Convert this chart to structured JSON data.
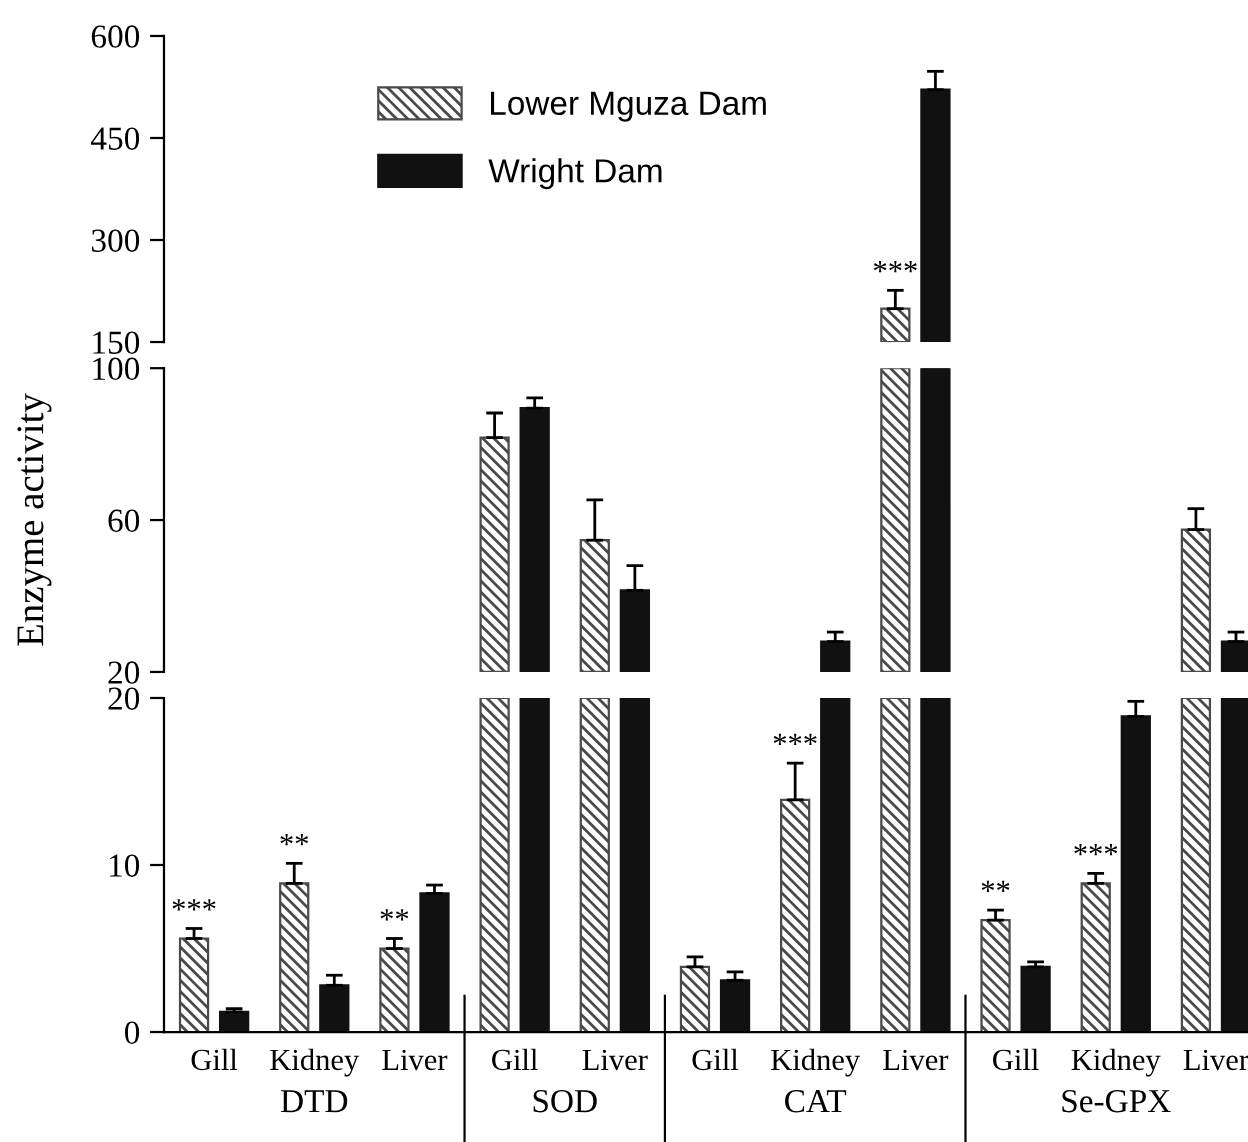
{
  "chart_data": [
    {
      "type": "bar",
      "categories": [
        null,
        null,
        null,
        null,
        null,
        null,
        null,
        null,
        null,
        null,
        null
      ],
      "series": [
        {
          "name": "Lower Mguza Dam",
          "color": "#4a4a4a",
          "base": [
            null,
            null,
            null,
            null,
            null,
            null,
            null,
            150,
            null,
            null,
            null
          ],
          "values": [
            null,
            null,
            null,
            null,
            null,
            null,
            null,
            49,
            null,
            null,
            null
          ],
          "errors": [
            null,
            null,
            null,
            null,
            null,
            null,
            null,
            [
              199,
              226
            ],
            null,
            null,
            null
          ],
          "value_labels": [
            null,
            null,
            null,
            null,
            null,
            null,
            null,
            "***",
            null,
            null,
            null
          ]
        },
        {
          "name": "Wright Dam",
          "color": "#111111",
          "base": [
            null,
            null,
            null,
            null,
            null,
            null,
            null,
            150,
            null,
            null,
            null
          ],
          "values": [
            null,
            null,
            null,
            null,
            null,
            null,
            null,
            371,
            null,
            null,
            null
          ],
          "errors": [
            null,
            null,
            null,
            null,
            null,
            null,
            null,
            [
              521,
              548
            ],
            null,
            null,
            null
          ]
        }
      ],
      "ylim": [
        150,
        600
      ],
      "yticks": [
        150,
        300,
        450,
        600
      ],
      "tick_labels": "y",
      "legend": "top left"
    },
    {
      "type": "bar",
      "categories": [
        null,
        null,
        null,
        null,
        null,
        null,
        null,
        null,
        null,
        null,
        null
      ],
      "ylabel": "Enzyme activity",
      "series": [
        {
          "color": "#4a4a4a",
          "base": [
            null,
            null,
            null,
            20,
            20,
            null,
            null,
            20,
            null,
            null,
            20
          ],
          "values": [
            null,
            null,
            null,
            61.7,
            34.7,
            null,
            null,
            80,
            null,
            null,
            37.5
          ],
          "errors": [
            null,
            null,
            null,
            [
              81.7,
              88.2
            ],
            [
              54.7,
              65.3
            ],
            null,
            null,
            null,
            null,
            null,
            [
              57.5,
              63
            ]
          ]
        },
        {
          "color": "#111111",
          "base": [
            null,
            null,
            null,
            20,
            20,
            null,
            20,
            20,
            null,
            null,
            20
          ],
          "values": [
            null,
            null,
            null,
            69.5,
            21.5,
            null,
            8.0,
            80,
            null,
            null,
            8.0
          ],
          "errors": [
            null,
            null,
            null,
            [
              89.5,
              92.2
            ],
            [
              41.5,
              48
            ],
            null,
            [
              28,
              30.5
            ],
            null,
            null,
            null,
            [
              28,
              30.5
            ]
          ]
        }
      ],
      "ylim": [
        20,
        100
      ],
      "yticks": [
        20,
        60,
        100
      ],
      "tick_labels": "y"
    },
    {
      "type": "bar",
      "categories": [
        "Gill",
        "Kidney",
        "Liver",
        "Gill",
        "Liver",
        "Gill",
        "Kidney",
        "Liver",
        "Gill",
        "Kidney",
        "Liver"
      ],
      "series": [
        {
          "color": "#4a4a4a",
          "values": [
            5.6,
            8.9,
            5.0,
            20,
            20,
            3.9,
            13.9,
            20,
            6.7,
            8.9,
            20
          ],
          "errors": [
            [
              5.6,
              6.2
            ],
            [
              8.9,
              10.1
            ],
            [
              5.0,
              5.6
            ],
            null,
            null,
            [
              3.9,
              4.5
            ],
            [
              13.9,
              16.1
            ],
            null,
            [
              6.7,
              7.3
            ],
            [
              8.9,
              9.5
            ],
            null
          ],
          "value_labels": [
            "***",
            "**",
            "**",
            null,
            null,
            null,
            "***",
            null,
            "**",
            "***",
            null
          ]
        },
        {
          "color": "#111111",
          "values": [
            1.2,
            2.8,
            8.3,
            20,
            20,
            3.1,
            20,
            20,
            3.9,
            18.9,
            20
          ],
          "errors": [
            [
              1.2,
              1.4
            ],
            [
              2.8,
              3.4
            ],
            [
              8.3,
              8.8
            ],
            null,
            null,
            [
              3.1,
              3.6
            ],
            null,
            null,
            [
              3.9,
              4.2
            ],
            [
              18.9,
              19.8
            ],
            null
          ]
        }
      ],
      "ylim": [
        0,
        20
      ],
      "yticks": [
        0,
        10,
        20
      ],
      "annotations": [
        "DTD",
        "SOD",
        "CAT",
        "Se-GPX"
      ]
    }
  ]
}
